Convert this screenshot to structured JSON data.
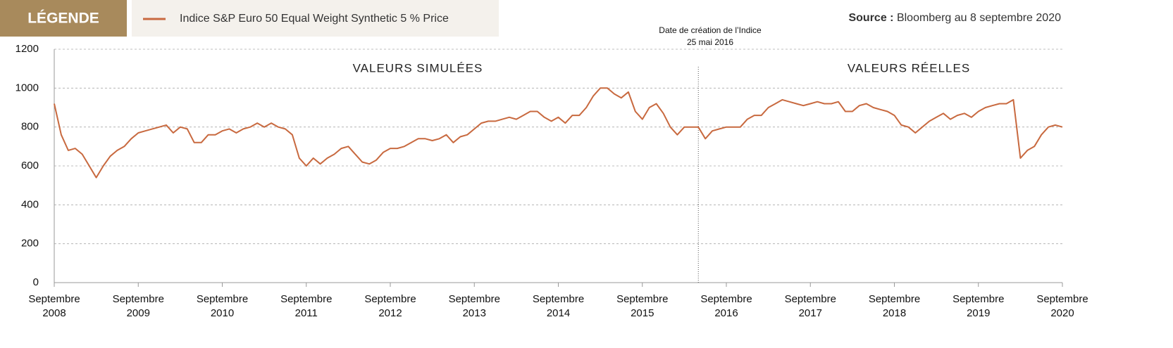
{
  "legend_header": "LÉGENDE",
  "source": {
    "label": "Source :",
    "text": "Bloomberg au 8 septembre 2020"
  },
  "chart_data": {
    "type": "line",
    "annotations": {
      "simulated": "VALEURS SIMULÉES",
      "real": "VALEURS RÉELLES",
      "creation": {
        "title": "Date de création de l’Indice",
        "date": "25 mai 2016",
        "x": "2016-05"
      }
    },
    "xlim": [
      "2008-09",
      "2020-09"
    ],
    "xticks": [
      {
        "value": "2008-09",
        "label": "Septembre 2008"
      },
      {
        "value": "2009-09",
        "label": "Septembre 2009"
      },
      {
        "value": "2010-09",
        "label": "Septembre 2010"
      },
      {
        "value": "2011-09",
        "label": "Septembre 2011"
      },
      {
        "value": "2012-09",
        "label": "Septembre 2012"
      },
      {
        "value": "2013-09",
        "label": "Septembre 2013"
      },
      {
        "value": "2014-09",
        "label": "Septembre 2014"
      },
      {
        "value": "2015-09",
        "label": "Septembre 2015"
      },
      {
        "value": "2016-09",
        "label": "Septembre 2016"
      },
      {
        "value": "2017-09",
        "label": "Septembre 2017"
      },
      {
        "value": "2018-09",
        "label": "Septembre 2018"
      },
      {
        "value": "2019-09",
        "label": "Septembre 2019"
      },
      {
        "value": "2020-09",
        "label": "Septembre 2020"
      }
    ],
    "ylim": [
      0,
      1200
    ],
    "yticks": [
      0,
      200,
      400,
      600,
      800,
      1000,
      1200
    ],
    "grid": true,
    "x": [
      "2008-09",
      "2008-10",
      "2008-11",
      "2008-12",
      "2009-01",
      "2009-02",
      "2009-03",
      "2009-04",
      "2009-05",
      "2009-06",
      "2009-07",
      "2009-08",
      "2009-09",
      "2009-10",
      "2009-11",
      "2009-12",
      "2010-01",
      "2010-02",
      "2010-03",
      "2010-04",
      "2010-05",
      "2010-06",
      "2010-07",
      "2010-08",
      "2010-09",
      "2010-10",
      "2010-11",
      "2010-12",
      "2011-01",
      "2011-02",
      "2011-03",
      "2011-04",
      "2011-05",
      "2011-06",
      "2011-07",
      "2011-08",
      "2011-09",
      "2011-10",
      "2011-11",
      "2011-12",
      "2012-01",
      "2012-02",
      "2012-03",
      "2012-04",
      "2012-05",
      "2012-06",
      "2012-07",
      "2012-08",
      "2012-09",
      "2012-10",
      "2012-11",
      "2012-12",
      "2013-01",
      "2013-02",
      "2013-03",
      "2013-04",
      "2013-05",
      "2013-06",
      "2013-07",
      "2013-08",
      "2013-09",
      "2013-10",
      "2013-11",
      "2013-12",
      "2014-01",
      "2014-02",
      "2014-03",
      "2014-04",
      "2014-05",
      "2014-06",
      "2014-07",
      "2014-08",
      "2014-09",
      "2014-10",
      "2014-11",
      "2014-12",
      "2015-01",
      "2015-02",
      "2015-03",
      "2015-04",
      "2015-05",
      "2015-06",
      "2015-07",
      "2015-08",
      "2015-09",
      "2015-10",
      "2015-11",
      "2015-12",
      "2016-01",
      "2016-02",
      "2016-03",
      "2016-04",
      "2016-05",
      "2016-06",
      "2016-07",
      "2016-08",
      "2016-09",
      "2016-10",
      "2016-11",
      "2016-12",
      "2017-01",
      "2017-02",
      "2017-03",
      "2017-04",
      "2017-05",
      "2017-06",
      "2017-07",
      "2017-08",
      "2017-09",
      "2017-10",
      "2017-11",
      "2017-12",
      "2018-01",
      "2018-02",
      "2018-03",
      "2018-04",
      "2018-05",
      "2018-06",
      "2018-07",
      "2018-08",
      "2018-09",
      "2018-10",
      "2018-11",
      "2018-12",
      "2019-01",
      "2019-02",
      "2019-03",
      "2019-04",
      "2019-05",
      "2019-06",
      "2019-07",
      "2019-08",
      "2019-09",
      "2019-10",
      "2019-11",
      "2019-12",
      "2020-01",
      "2020-02",
      "2020-03",
      "2020-04",
      "2020-05",
      "2020-06",
      "2020-07",
      "2020-08",
      "2020-09"
    ],
    "series": [
      {
        "name": "Indice S&P Euro 50 Equal Weight Synthetic 5 % Price",
        "color": "#c8693f",
        "values": [
          920,
          760,
          680,
          690,
          660,
          600,
          540,
          600,
          650,
          680,
          700,
          740,
          770,
          780,
          790,
          800,
          810,
          770,
          800,
          790,
          720,
          720,
          760,
          760,
          780,
          790,
          770,
          790,
          800,
          820,
          800,
          820,
          800,
          790,
          760,
          640,
          600,
          640,
          610,
          640,
          660,
          690,
          700,
          660,
          620,
          610,
          630,
          670,
          690,
          690,
          700,
          720,
          740,
          740,
          730,
          740,
          760,
          720,
          750,
          760,
          790,
          820,
          830,
          830,
          840,
          850,
          840,
          860,
          880,
          880,
          850,
          830,
          850,
          820,
          860,
          860,
          900,
          960,
          1000,
          1000,
          970,
          950,
          980,
          880,
          840,
          900,
          920,
          870,
          800,
          760,
          800,
          800,
          800,
          740,
          780,
          790,
          800,
          800,
          800,
          840,
          860,
          860,
          900,
          920,
          940,
          930,
          920,
          910,
          920,
          930,
          920,
          920,
          930,
          880,
          880,
          910,
          920,
          900,
          890,
          880,
          860,
          810,
          800,
          770,
          800,
          830,
          850,
          870,
          840,
          860,
          870,
          850,
          880,
          900,
          910,
          920,
          920,
          940,
          640,
          680,
          700,
          760,
          800,
          810,
          800
        ]
      }
    ]
  }
}
